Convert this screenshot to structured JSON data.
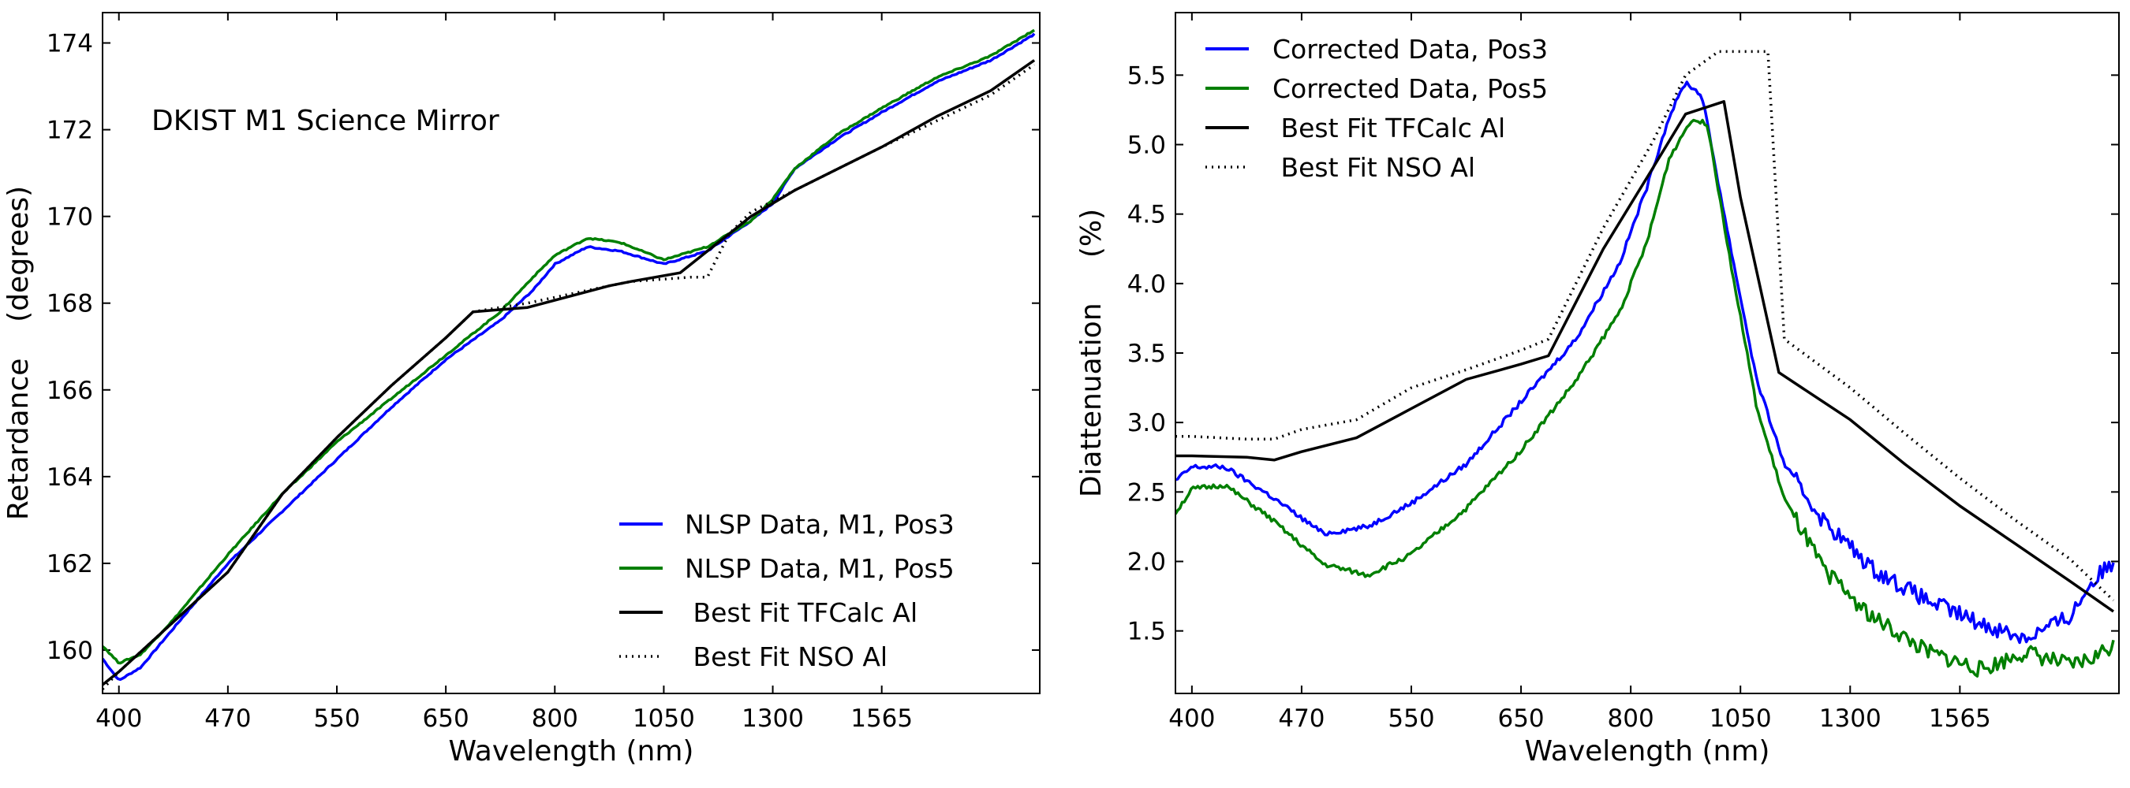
{
  "chart_data": [
    {
      "type": "line",
      "annotation": "DKIST M1 Science Mirror",
      "xlabel": "Wavelength (nm)",
      "ylabel": "Retardance    (degrees)",
      "xticks": [
        "400",
        "470",
        "550",
        "650",
        "800",
        "1050",
        "1300",
        "1565"
      ],
      "yticks": [
        "160",
        "162",
        "164",
        "166",
        "168",
        "170",
        "172",
        "174"
      ],
      "ylim": [
        159,
        174.7
      ],
      "legend_position": "lower-right",
      "series": [
        {
          "name": "NLSP Data, M1, Pos3",
          "color": "#0000ff",
          "style": "solid",
          "kind": "data",
          "points": [
            [
              -0.15,
              159.8
            ],
            [
              0,
              159.3
            ],
            [
              0.2,
              159.6
            ],
            [
              0.5,
              160.5
            ],
            [
              1,
              162.0
            ],
            [
              1.5,
              163.2
            ],
            [
              2,
              164.4
            ],
            [
              2.5,
              165.6
            ],
            [
              3,
              166.7
            ],
            [
              3.5,
              167.6
            ],
            [
              3.8,
              168.3
            ],
            [
              4,
              168.9
            ],
            [
              4.3,
              169.3
            ],
            [
              4.6,
              169.2
            ],
            [
              5.0,
              168.9
            ],
            [
              5.4,
              169.2
            ],
            [
              5.8,
              169.9
            ],
            [
              6.0,
              170.3
            ],
            [
              6.2,
              171.1
            ],
            [
              6.6,
              171.8
            ],
            [
              7,
              172.4
            ],
            [
              7.5,
              173.1
            ],
            [
              8,
              173.6
            ],
            [
              8.4,
              174.2
            ]
          ]
        },
        {
          "name": "NLSP Data, M1, Pos5",
          "color": "#007f00",
          "style": "solid",
          "kind": "data",
          "points": [
            [
              -0.15,
              160.1
            ],
            [
              0,
              159.7
            ],
            [
              0.2,
              159.9
            ],
            [
              0.5,
              160.7
            ],
            [
              1,
              162.2
            ],
            [
              1.5,
              163.6
            ],
            [
              2,
              164.8
            ],
            [
              2.5,
              165.8
            ],
            [
              3,
              166.8
            ],
            [
              3.5,
              167.8
            ],
            [
              3.8,
              168.6
            ],
            [
              4,
              169.1
            ],
            [
              4.3,
              169.5
            ],
            [
              4.6,
              169.4
            ],
            [
              5.0,
              169.0
            ],
            [
              5.4,
              169.3
            ],
            [
              5.8,
              169.9
            ],
            [
              6.0,
              170.4
            ],
            [
              6.2,
              171.1
            ],
            [
              6.6,
              171.9
            ],
            [
              7,
              172.5
            ],
            [
              7.5,
              173.2
            ],
            [
              8,
              173.7
            ],
            [
              8.4,
              174.3
            ]
          ]
        },
        {
          "name": " Best Fit TFCalc Al",
          "color": "#000000",
          "style": "solid",
          "kind": "fit",
          "points": [
            [
              -0.15,
              159.2
            ],
            [
              0,
              159.5
            ],
            [
              1,
              161.8
            ],
            [
              1.5,
              163.6
            ],
            [
              2,
              164.9
            ],
            [
              2.5,
              166.1
            ],
            [
              3,
              167.2
            ],
            [
              3.25,
              167.8
            ],
            [
              3.75,
              167.9
            ],
            [
              4.5,
              168.4
            ],
            [
              4.7,
              168.5
            ],
            [
              5.15,
              168.7
            ],
            [
              5.6,
              169.6
            ],
            [
              5.8,
              170.0
            ],
            [
              6.2,
              170.6
            ],
            [
              6.6,
              171.1
            ],
            [
              7,
              171.6
            ],
            [
              7.5,
              172.3
            ],
            [
              8,
              172.9
            ],
            [
              8.4,
              173.6
            ]
          ]
        },
        {
          "name": " Best Fit NSO Al",
          "color": "#000000",
          "style": "dotted",
          "kind": "fit",
          "points": [
            [
              -0.15,
              159.1
            ],
            [
              0,
              159.5
            ],
            [
              1,
              161.8
            ],
            [
              1.5,
              163.6
            ],
            [
              2,
              164.9
            ],
            [
              2.5,
              166.1
            ],
            [
              3,
              167.2
            ],
            [
              3.25,
              167.8
            ],
            [
              3.75,
              168.0
            ],
            [
              4.5,
              168.4
            ],
            [
              4.7,
              168.5
            ],
            [
              5.25,
              168.6
            ],
            [
              5.4,
              168.6
            ],
            [
              5.6,
              169.6
            ],
            [
              5.8,
              170.1
            ],
            [
              6.2,
              170.6
            ],
            [
              6.6,
              171.1
            ],
            [
              7,
              171.6
            ],
            [
              7.5,
              172.2
            ],
            [
              8,
              172.8
            ],
            [
              8.4,
              173.5
            ]
          ]
        }
      ]
    },
    {
      "type": "line",
      "xlabel": "Wavelength (nm)",
      "ylabel": "Diattenuation     (%)",
      "xticks": [
        "400",
        "470",
        "550",
        "650",
        "800",
        "1050",
        "1300",
        "1565"
      ],
      "yticks": [
        "1.5",
        "2.0",
        "2.5",
        "3.0",
        "3.5",
        "4.0",
        "4.5",
        "5.0",
        "5.5"
      ],
      "ylim": [
        1.05,
        5.95
      ],
      "legend_position": "upper-left",
      "series": [
        {
          "name": "Corrected Data, Pos3",
          "color": "#0000ff",
          "style": "solid",
          "kind": "data",
          "points": [
            [
              -0.15,
              2.58
            ],
            [
              0,
              2.68
            ],
            [
              0.3,
              2.68
            ],
            [
              0.7,
              2.48
            ],
            [
              1.2,
              2.2
            ],
            [
              1.6,
              2.25
            ],
            [
              2.0,
              2.42
            ],
            [
              2.5,
              2.7
            ],
            [
              3.0,
              3.15
            ],
            [
              3.5,
              3.6
            ],
            [
              3.9,
              4.15
            ],
            [
              4.15,
              4.7
            ],
            [
              4.35,
              5.2
            ],
            [
              4.5,
              5.45
            ],
            [
              4.65,
              5.35
            ],
            [
              4.9,
              4.3
            ],
            [
              5.15,
              3.3
            ],
            [
              5.4,
              2.7
            ],
            [
              5.75,
              2.3
            ],
            [
              6.2,
              1.95
            ],
            [
              6.7,
              1.72
            ],
            [
              7.2,
              1.55
            ],
            [
              7.6,
              1.45
            ],
            [
              8.0,
              1.6
            ],
            [
              8.2,
              1.85
            ],
            [
              8.4,
              2.0
            ]
          ]
        },
        {
          "name": "Corrected Data, Pos5",
          "color": "#007f00",
          "style": "solid",
          "kind": "data",
          "points": [
            [
              -0.15,
              2.35
            ],
            [
              0,
              2.52
            ],
            [
              0.3,
              2.55
            ],
            [
              0.7,
              2.32
            ],
            [
              1.2,
              1.98
            ],
            [
              1.6,
              1.9
            ],
            [
              2.0,
              2.05
            ],
            [
              2.5,
              2.38
            ],
            [
              3.0,
              2.8
            ],
            [
              3.5,
              3.3
            ],
            [
              3.9,
              3.8
            ],
            [
              4.15,
              4.3
            ],
            [
              4.35,
              4.9
            ],
            [
              4.55,
              5.18
            ],
            [
              4.7,
              5.15
            ],
            [
              4.9,
              4.2
            ],
            [
              5.15,
              3.1
            ],
            [
              5.4,
              2.45
            ],
            [
              5.75,
              1.95
            ],
            [
              6.2,
              1.6
            ],
            [
              6.7,
              1.35
            ],
            [
              7.2,
              1.22
            ],
            [
              7.6,
              1.35
            ],
            [
              8.0,
              1.25
            ],
            [
              8.2,
              1.3
            ],
            [
              8.4,
              1.4
            ]
          ]
        },
        {
          "name": " Best Fit TFCalc Al",
          "color": "#000000",
          "style": "solid",
          "kind": "fit",
          "points": [
            [
              -0.15,
              2.76
            ],
            [
              0,
              2.76
            ],
            [
              0.5,
              2.75
            ],
            [
              0.75,
              2.73
            ],
            [
              1.0,
              2.79
            ],
            [
              1.5,
              2.89
            ],
            [
              2.0,
              3.1
            ],
            [
              2.5,
              3.31
            ],
            [
              3.0,
              3.42
            ],
            [
              3.25,
              3.48
            ],
            [
              3.75,
              4.25
            ],
            [
              4.2,
              4.83
            ],
            [
              4.5,
              5.22
            ],
            [
              4.85,
              5.31
            ],
            [
              5.0,
              4.62
            ],
            [
              5.35,
              3.36
            ],
            [
              6.0,
              3.02
            ],
            [
              6.5,
              2.7
            ],
            [
              7.0,
              2.4
            ],
            [
              7.5,
              2.13
            ],
            [
              8.0,
              1.86
            ],
            [
              8.4,
              1.64
            ]
          ]
        },
        {
          "name": " Best Fit NSO Al",
          "color": "#000000",
          "style": "dotted",
          "kind": "fit",
          "points": [
            [
              -0.15,
              2.9
            ],
            [
              0,
              2.9
            ],
            [
              0.5,
              2.88
            ],
            [
              0.75,
              2.88
            ],
            [
              1.0,
              2.95
            ],
            [
              1.5,
              3.02
            ],
            [
              2.0,
              3.25
            ],
            [
              2.5,
              3.38
            ],
            [
              3.0,
              3.52
            ],
            [
              3.25,
              3.6
            ],
            [
              3.75,
              4.4
            ],
            [
              4.2,
              5.02
            ],
            [
              4.5,
              5.5
            ],
            [
              4.8,
              5.67
            ],
            [
              5.25,
              5.67
            ],
            [
              5.4,
              3.6
            ],
            [
              6.0,
              3.25
            ],
            [
              6.5,
              2.92
            ],
            [
              7.0,
              2.6
            ],
            [
              7.5,
              2.3
            ],
            [
              8.0,
              2.02
            ],
            [
              8.4,
              1.72
            ]
          ]
        }
      ]
    }
  ]
}
